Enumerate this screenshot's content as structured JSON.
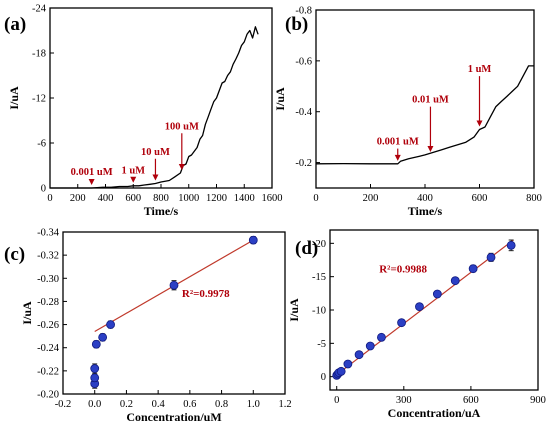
{
  "chart_data": [
    {
      "panel_label": "(a)",
      "type": "line",
      "xlabel": "Time/s",
      "ylabel": "I/uA",
      "xlim": [
        0,
        1600
      ],
      "ylim": [
        0,
        -24
      ],
      "xticks": [
        0,
        200,
        400,
        600,
        800,
        1000,
        1200,
        1400,
        1600
      ],
      "yticks": [
        0,
        -6,
        -12,
        -18,
        -24
      ],
      "line_color": "#000000",
      "series": [
        {
          "x": [
            0,
            300,
            380,
            440,
            500,
            560,
            600,
            640,
            680,
            720,
            760,
            800,
            860,
            900,
            940,
            960,
            980,
            1000,
            1020,
            1060,
            1080,
            1100,
            1120,
            1140,
            1160,
            1180,
            1200,
            1220,
            1240,
            1260,
            1280,
            1300,
            1320,
            1340,
            1360,
            1380,
            1400,
            1420,
            1440,
            1460,
            1480,
            1500
          ],
          "y": [
            0,
            0,
            -0.1,
            -0.1,
            -0.2,
            -0.2,
            -0.3,
            -0.3,
            -0.4,
            -0.5,
            -0.6,
            -0.8,
            -1.0,
            -1.5,
            -2.0,
            -3.0,
            -3.2,
            -4.2,
            -4.4,
            -5.4,
            -6.5,
            -7.0,
            -8.5,
            -9.5,
            -10.5,
            -11.5,
            -12.0,
            -13.0,
            -14.0,
            -14.2,
            -15.0,
            -15.5,
            -16.5,
            -17.2,
            -18.0,
            -19.0,
            -19.5,
            -20.5,
            -21.0,
            -20.0,
            -21.5,
            -20.5
          ]
        }
      ],
      "annotations": [
        {
          "text": "0.001 uM",
          "x": 300,
          "y": -1.2
        },
        {
          "text": "1 uM",
          "x": 600,
          "y": -1.4
        },
        {
          "text": "10 uM",
          "x": 760,
          "y": -3.9
        },
        {
          "text": "100 uM",
          "x": 950,
          "y": -7.3
        }
      ]
    },
    {
      "panel_label": "(b)",
      "type": "line",
      "xlabel": "Time/s",
      "ylabel": "I/uA",
      "xlim": [
        0,
        800
      ],
      "ylim": [
        -0.1,
        -0.8
      ],
      "xticks": [
        0,
        200,
        400,
        600,
        800
      ],
      "yticks": [
        -0.2,
        -0.4,
        -0.6,
        -0.8
      ],
      "line_color": "#000000",
      "series": [
        {
          "x": [
            0,
            100,
            200,
            300,
            310,
            340,
            380,
            400,
            430,
            460,
            490,
            520,
            550,
            580,
            600,
            620,
            640,
            660,
            680,
            700,
            720,
            740,
            760,
            780,
            800
          ],
          "y": [
            -0.195,
            -0.196,
            -0.195,
            -0.195,
            -0.205,
            -0.215,
            -0.225,
            -0.23,
            -0.24,
            -0.25,
            -0.26,
            -0.27,
            -0.28,
            -0.3,
            -0.33,
            -0.34,
            -0.38,
            -0.42,
            -0.44,
            -0.46,
            -0.48,
            -0.5,
            -0.54,
            -0.58,
            -0.58
          ]
        }
      ],
      "annotations": [
        {
          "text": "0.001 uM",
          "x": 300,
          "y": -0.255
        },
        {
          "text": "0.01 uM",
          "x": 420,
          "y": -0.42
        },
        {
          "text": "1 uM",
          "x": 600,
          "y": -0.54
        }
      ]
    },
    {
      "panel_label": "(c)",
      "type": "scatter",
      "xlabel": "Concentration/uM",
      "ylabel": "I/uA",
      "xlim": [
        -0.2,
        1.2
      ],
      "ylim": [
        -0.2,
        -0.34
      ],
      "xticks": [
        -0.2,
        0.0,
        0.2,
        0.4,
        0.6,
        0.8,
        1.0,
        1.2
      ],
      "xtick_labels": [
        "-0.2",
        "0.0",
        "0.2",
        "0.4",
        "0.6",
        "0.8",
        "1.0",
        "1.2"
      ],
      "yticks": [
        -0.2,
        -0.22,
        -0.24,
        -0.26,
        -0.28,
        -0.3,
        -0.32,
        -0.34
      ],
      "ytick_labels": [
        "-0.20",
        "-0.22",
        "-0.24",
        "-0.26",
        "-0.28",
        "-0.30",
        "-0.32",
        "-0.34"
      ],
      "points": [
        {
          "x": 0.0,
          "y": -0.209,
          "err": 0.004
        },
        {
          "x": 0.0,
          "y": -0.214,
          "err": 0.003
        },
        {
          "x": 0.0,
          "y": -0.222,
          "err": 0.004
        },
        {
          "x": 0.01,
          "y": -0.243,
          "err": 0.003
        },
        {
          "x": 0.05,
          "y": -0.249,
          "err": 0.003
        },
        {
          "x": 0.1,
          "y": -0.26,
          "err": 0.003
        },
        {
          "x": 0.5,
          "y": -0.294,
          "err": 0.004
        },
        {
          "x": 1.0,
          "y": -0.333,
          "err": 0.003
        }
      ],
      "fit_line": {
        "x1": 0.0,
        "y1": -0.254,
        "x2": 1.0,
        "y2": -0.333
      },
      "annotation": "R²=0.9978",
      "annotation_pos": {
        "x": 0.55,
        "y": -0.284
      }
    },
    {
      "panel_label": "(d)",
      "type": "scatter",
      "xlabel": "Concentration/uA",
      "ylabel": "I/uA",
      "xlim": [
        -30,
        900
      ],
      "ylim": [
        2,
        -22
      ],
      "xticks": [
        0,
        300,
        600,
        900
      ],
      "yticks": [
        0,
        -5,
        -10,
        -15,
        -20
      ],
      "points": [
        {
          "x": 0,
          "y": -0.2,
          "err": 0.2
        },
        {
          "x": 5,
          "y": -0.4,
          "err": 0.2
        },
        {
          "x": 10,
          "y": -0.6,
          "err": 0.2
        },
        {
          "x": 20,
          "y": -0.8,
          "err": 0.2
        },
        {
          "x": 50,
          "y": -1.9,
          "err": 0.3
        },
        {
          "x": 100,
          "y": -3.3,
          "err": 0.3
        },
        {
          "x": 150,
          "y": -4.6,
          "err": 0.3
        },
        {
          "x": 200,
          "y": -5.9,
          "err": 0.4
        },
        {
          "x": 290,
          "y": -8.1,
          "err": 0.4
        },
        {
          "x": 370,
          "y": -10.5,
          "err": 0.4
        },
        {
          "x": 450,
          "y": -12.4,
          "err": 0.4
        },
        {
          "x": 530,
          "y": -14.4,
          "err": 0.4
        },
        {
          "x": 610,
          "y": -16.2,
          "err": 0.5
        },
        {
          "x": 690,
          "y": -17.9,
          "err": 0.6
        },
        {
          "x": 780,
          "y": -19.7,
          "err": 0.8
        }
      ],
      "fit_line": {
        "x1": 0,
        "y1": -0.3,
        "x2": 790,
        "y2": -20.5
      },
      "annotation": "R²=0.9988",
      "annotation_pos": {
        "x": 190,
        "y": -15.6
      }
    }
  ]
}
